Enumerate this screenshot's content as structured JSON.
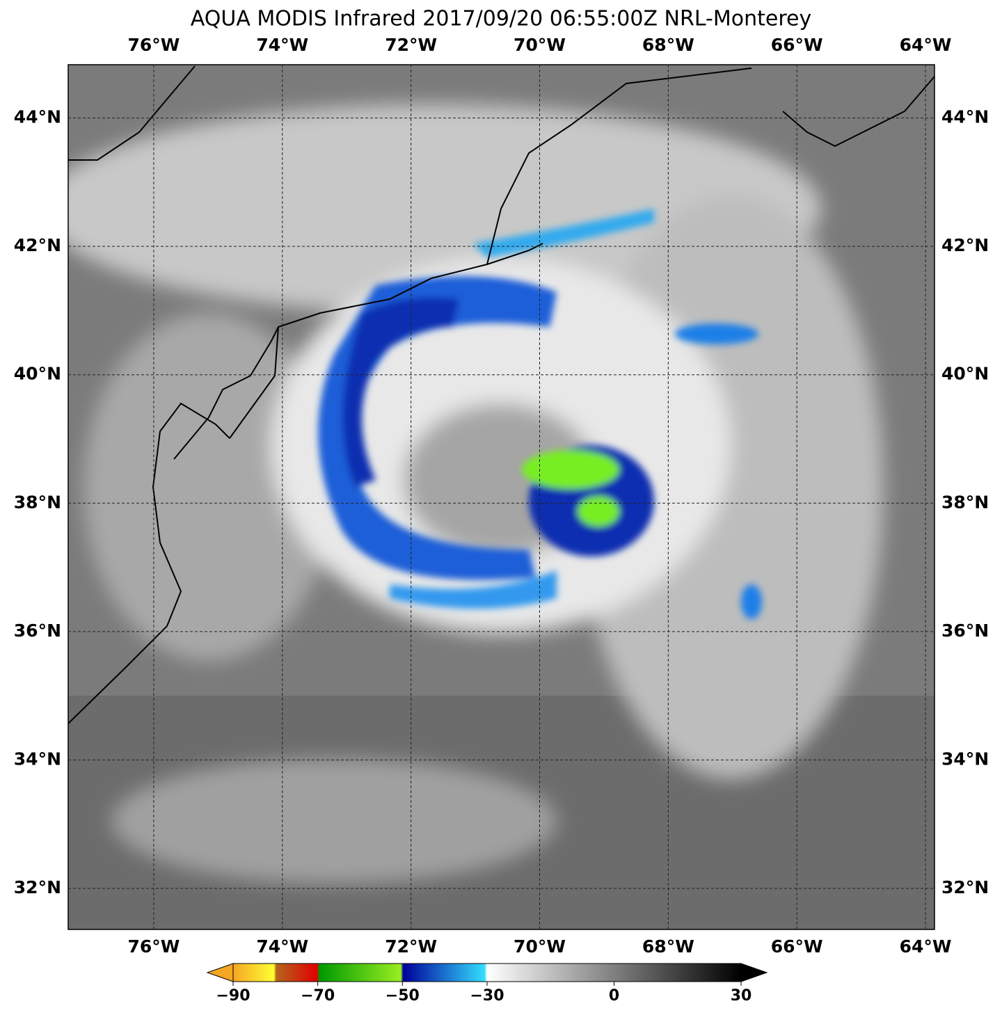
{
  "chart_data": {
    "type": "map",
    "title": "AQUA MODIS Infrared 2017/09/20 06:55:00Z NRL-Monterey",
    "xlim": [
      -77.33,
      -63.86
    ],
    "ylim": [
      31.36,
      44.83
    ],
    "xticks": [
      {
        "value": -76,
        "label": "76°W"
      },
      {
        "value": -74,
        "label": "74°W"
      },
      {
        "value": -72,
        "label": "72°W"
      },
      {
        "value": -70,
        "label": "70°W"
      },
      {
        "value": -68,
        "label": "68°W"
      },
      {
        "value": -66,
        "label": "66°W"
      },
      {
        "value": -64,
        "label": "64°W"
      }
    ],
    "yticks": [
      {
        "value": 44,
        "label": "44°N"
      },
      {
        "value": 42,
        "label": "42°N"
      },
      {
        "value": 40,
        "label": "40°N"
      },
      {
        "value": 38,
        "label": "38°N"
      },
      {
        "value": 36,
        "label": "36°N"
      },
      {
        "value": 34,
        "label": "34°N"
      },
      {
        "value": 32,
        "label": "32°N"
      }
    ],
    "grid": true,
    "colorbar": {
      "lim": [
        -90,
        30
      ],
      "ticks": [
        {
          "value": -90,
          "label": "−90"
        },
        {
          "value": -70,
          "label": "−70"
        },
        {
          "value": -50,
          "label": "−50"
        },
        {
          "value": -30,
          "label": "−30"
        },
        0,
        30
      ]
    }
  }
}
